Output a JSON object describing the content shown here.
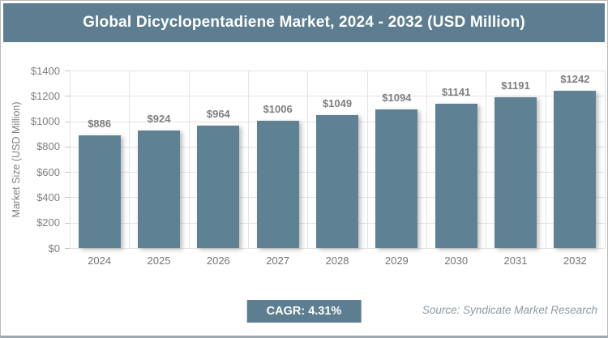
{
  "header": {
    "title": "Global Dicyclopentadiene Market, 2024 - 2032 (USD Million)"
  },
  "chart_data": {
    "type": "bar",
    "title": "Global Dicyclopentadiene Market, 2024 - 2032 (USD Million)",
    "categories": [
      "2024",
      "2025",
      "2026",
      "2027",
      "2028",
      "2029",
      "2030",
      "2031",
      "2032"
    ],
    "values": [
      886,
      924,
      964,
      1006,
      1049,
      1094,
      1141,
      1191,
      1242
    ],
    "value_labels": [
      "$886",
      "$924",
      "$964",
      "$1006",
      "$1049",
      "$1094",
      "$1141",
      "$1191",
      "$1242"
    ],
    "xlabel": "",
    "ylabel": "Market Size (USD Million)",
    "ylim": [
      0,
      1400
    ],
    "ytick_step": 200,
    "ytick_labels": [
      "$0",
      "$200",
      "$400",
      "$600",
      "$800",
      "$1000",
      "$1200",
      "$1400"
    ],
    "grid": true,
    "legend": false
  },
  "footer": {
    "cagr_label": "CAGR: 4.31%",
    "source": "Source: Syndicate Market Research"
  },
  "colors": {
    "accent": "#5d7e90",
    "bar": "#5e8294",
    "grid": "#e3e3e3",
    "tick": "#c4c4c4",
    "label": "#7f7f7f",
    "source_text": "#8d9aa4"
  }
}
